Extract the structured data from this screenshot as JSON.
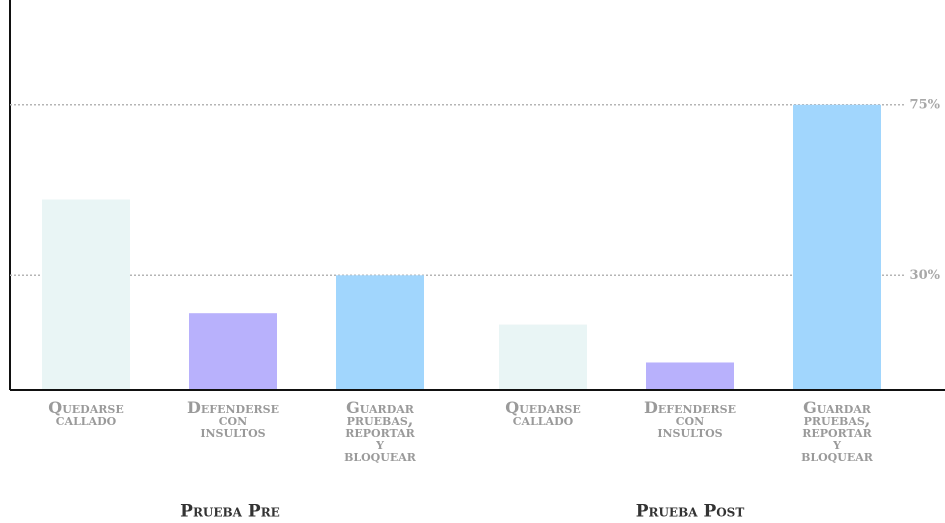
{
  "chart_data": {
    "type": "bar",
    "groups": [
      {
        "name": "Prueba Pre",
        "categories": [
          "Quedarse callado",
          "Defenderse con insultos",
          "Guardar pruebas, reportar y bloquear"
        ],
        "values": [
          50,
          20,
          30
        ]
      },
      {
        "name": "Prueba Post",
        "categories": [
          "Quedarse callado",
          "Defenderse con insultos",
          "Guardar pruebas, reportar y bloquear"
        ],
        "values": [
          17,
          7,
          75
        ]
      }
    ],
    "colors": [
      "#e9f5f5",
      "#b8b1fc",
      "#a1d6fd"
    ],
    "ylim": [
      0,
      100
    ],
    "yticks": [
      {
        "value": 30,
        "label": "30%"
      },
      {
        "value": 75,
        "label": "75%"
      }
    ],
    "grid": true
  }
}
